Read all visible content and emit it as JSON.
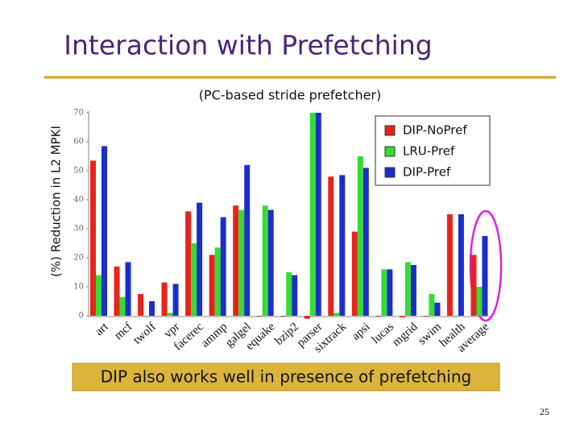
{
  "slide": {
    "title": "Interaction with Prefetching",
    "callout": "DIP also works well in presence of prefetching",
    "page_number": "25"
  },
  "chart_data": {
    "type": "bar",
    "subtitle": "(PC-based stride prefetcher)",
    "y_label": "(%) Reduction in L2 MPKI",
    "categories": [
      "art",
      "mcf",
      "twolf",
      "vpr",
      "facerec",
      "ammp",
      "galgel",
      "equake",
      "bzip2",
      "parser",
      "sixtrack",
      "apsi",
      "lucas",
      "mgrid",
      "swim",
      "health",
      "average"
    ],
    "series": [
      {
        "name": "DIP-NoPref",
        "color": "#e8231b",
        "values": [
          53.5,
          17,
          7.5,
          11.5,
          36,
          21,
          38,
          0,
          0,
          -1,
          48,
          29,
          0,
          -0.5,
          0,
          35,
          21
        ]
      },
      {
        "name": "LRU-Pref",
        "color": "#33dd33",
        "values": [
          14,
          6.5,
          0,
          1,
          25,
          23.5,
          36.5,
          38,
          15,
          70,
          1,
          55,
          16,
          18.5,
          7.5,
          0,
          10
        ]
      },
      {
        "name": "DIP-Pref",
        "color": "#1a2ecc",
        "values": [
          58.5,
          18.5,
          5,
          11,
          39,
          34,
          52,
          36.5,
          14,
          70,
          48.5,
          51,
          16,
          17.5,
          4.5,
          35,
          27.5
        ]
      }
    ],
    "ylim": [
      0,
      70
    ],
    "yticks": [
      0,
      10,
      20,
      30,
      40,
      50,
      60,
      70
    ],
    "legend": "upper right",
    "grid": false
  }
}
